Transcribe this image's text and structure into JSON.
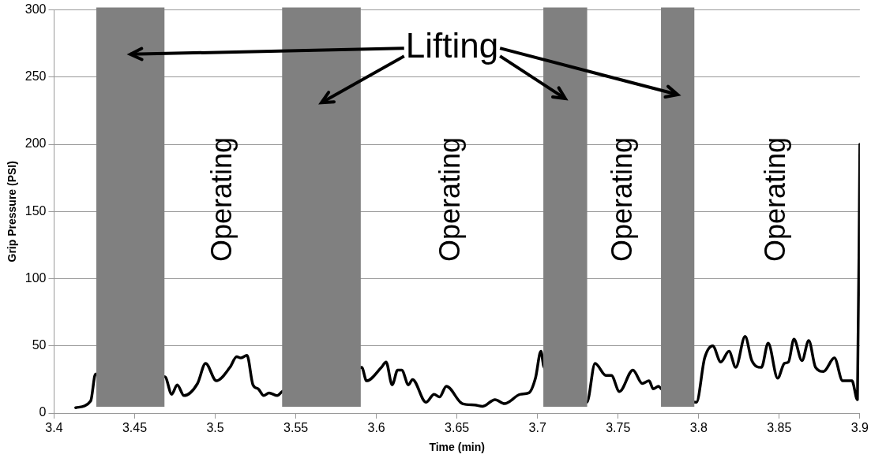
{
  "chart_data": {
    "type": "line",
    "xlabel": "Time (min)",
    "ylabel": "Grip Pressure (PSI)",
    "xlim": [
      3.4,
      3.9
    ],
    "xticks": [
      3.4,
      3.45,
      3.5,
      3.55,
      3.6,
      3.65,
      3.7,
      3.75,
      3.8,
      3.85,
      3.9
    ],
    "ylim": [
      0,
      300
    ],
    "yticks": [
      0,
      50,
      100,
      150,
      200,
      250,
      300
    ],
    "grid": "y",
    "legend": false,
    "marker": "none",
    "line_style": "solid",
    "series": [
      {
        "color": "#000000",
        "x": [
          3.4134,
          3.4227,
          3.4257,
          3.4688,
          3.473,
          3.4764,
          3.4806,
          3.489,
          3.494,
          3.5007,
          3.5091,
          3.5133,
          3.5158,
          3.5197,
          3.5234,
          3.5267,
          3.5301,
          3.5334,
          3.5385,
          3.5415,
          3.5909,
          3.5939,
          3.6031,
          3.606,
          3.6098,
          3.6132,
          3.6157,
          3.6199,
          3.6224,
          3.6308,
          3.6358,
          3.6392,
          3.6434,
          3.6534,
          3.661,
          3.666,
          3.6736,
          3.6795,
          3.6895,
          3.6946,
          3.6987,
          3.7021,
          3.7038,
          3.7306,
          3.7357,
          3.7424,
          3.7458,
          3.7508,
          3.7592,
          3.765,
          3.7692,
          3.7718,
          3.7751,
          3.7768,
          3.7986,
          3.8037,
          3.8087,
          3.8137,
          3.8188,
          3.823,
          3.8288,
          3.833,
          3.8389,
          3.8431,
          3.849,
          3.8532,
          3.8557,
          3.8591,
          3.8641,
          3.8683,
          3.8725,
          3.8775,
          3.8842,
          3.8893,
          3.8951,
          3.8985,
          3.9
        ],
        "values": [
          4,
          9,
          29,
          27,
          14,
          21,
          13,
          22,
          37,
          24,
          34,
          42,
          41,
          43,
          21,
          18,
          13,
          15,
          13,
          16,
          34,
          24,
          34,
          38,
          21,
          32,
          32,
          21,
          25,
          8,
          14,
          12,
          20,
          7,
          6,
          5,
          10,
          7,
          14,
          15,
          26,
          46,
          35,
          8,
          37,
          28,
          28,
          16,
          32,
          22,
          24,
          18,
          20,
          18,
          8,
          41,
          50,
          38,
          46,
          34,
          57,
          39,
          34,
          52,
          26,
          37,
          38,
          55,
          39,
          54,
          34,
          31,
          41,
          24,
          24,
          10,
          200
        ]
      }
    ],
    "bands": [
      {
        "axis": "x",
        "from": 3.4262,
        "to": 3.4685,
        "label": null,
        "color": "#808080"
      },
      {
        "axis": "x",
        "from": 3.5415,
        "to": 3.5903,
        "label": null,
        "color": "#808080"
      },
      {
        "axis": "x",
        "from": 3.7036,
        "to": 3.7308,
        "label": null,
        "color": "#808080"
      },
      {
        "axis": "x",
        "from": 3.7766,
        "to": 3.7973,
        "label": null,
        "color": "#808080"
      }
    ],
    "annotations": [
      "Lifting",
      "Operating",
      "Operating",
      "Operating",
      "Operating"
    ]
  }
}
